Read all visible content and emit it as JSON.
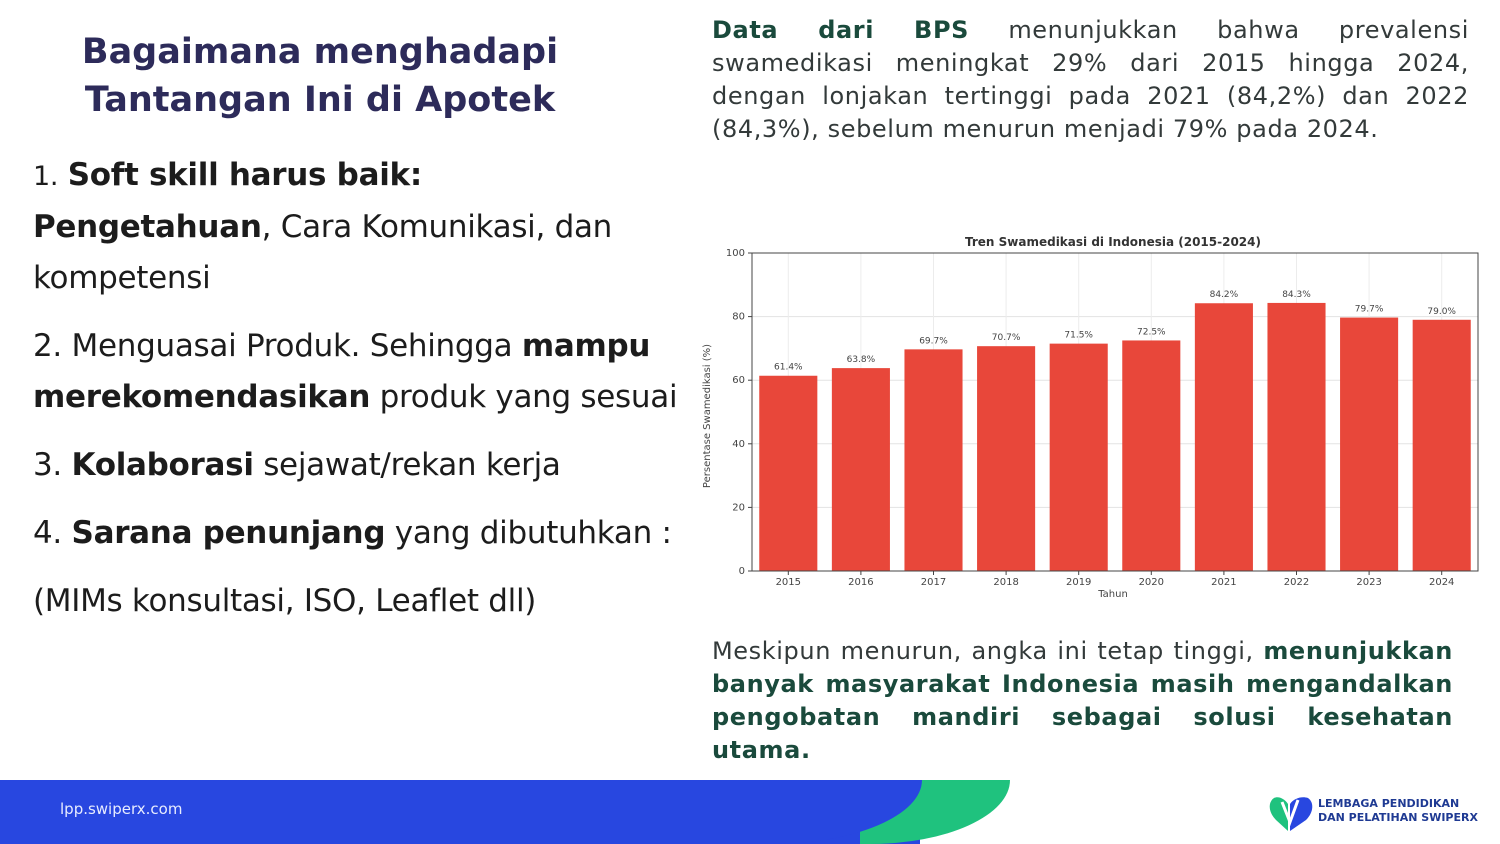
{
  "slide": {
    "title_line1": "Bagaimana menghadapi",
    "title_line2": "Tantangan Ini di Apotek"
  },
  "points": [
    {
      "num": "1.",
      "bold": "Soft skill harus baik:",
      "bold2": "Pengetahuan",
      "rest": ", Cara Komunikasi, dan kompetensi"
    },
    {
      "num": "2.",
      "lead": " Menguasai Produk. Sehingga ",
      "bold": "mampu merekomendasikan",
      "rest": " produk yang sesuai"
    },
    {
      "num": "3.",
      "bold": "Kolaborasi",
      "rest": " sejawat/rekan kerja"
    },
    {
      "num": "4.",
      "bold": "Sarana penunjang",
      "rest": " yang dibutuhkan :"
    },
    {
      "text": "(MIMs konsultasi, ISO, Leaflet dll)"
    }
  ],
  "info_top": {
    "hl": "Data dari BPS",
    "text": " menunjukkan bahwa prevalensi swamedikasi meningkat 29% dari 2015 hingga 2024, dengan lonjakan tertinggi pada 2021 (84,2%) dan 2022 (84,3%), sebelum menurun menjadi 79% pada 2024."
  },
  "info_bottom": {
    "text": "Meskipun menurun, angka ini tetap tinggi, ",
    "hl": "menunjukkan banyak masyarakat Indonesia masih mengandalkan pengobatan mandiri sebagai solusi kesehatan utama."
  },
  "chart_data": {
    "type": "bar",
    "title": "Tren Swamedikasi di Indonesia (2015-2024)",
    "xlabel": "Tahun",
    "ylabel": "Persentase Swamedikasi (%)",
    "ylim": [
      0,
      100
    ],
    "yticks": [
      "0",
      "20",
      "40",
      "60",
      "80",
      "100"
    ],
    "grid": true,
    "categories": [
      "2015",
      "2016",
      "2017",
      "2018",
      "2019",
      "2020",
      "2021",
      "2022",
      "2023",
      "2024"
    ],
    "values": [
      61.4,
      63.8,
      69.7,
      70.7,
      71.5,
      72.5,
      84.2,
      84.3,
      79.7,
      79.0
    ],
    "data_labels": [
      "61.4%",
      "63.8%",
      "69.7%",
      "70.7%",
      "71.5%",
      "72.5%",
      "84.2%",
      "84.3%",
      "79.7%",
      "79.0%"
    ],
    "bar_color": "#e8473a"
  },
  "footer": {
    "url": "lpp.swiperx.com",
    "logo_line1": "LEMBAGA PENDIDIKAN",
    "logo_line2": "DAN PELATIHAN SWIPERX"
  },
  "colors": {
    "title": "#2d2b5a",
    "footer_blue": "#2847e0",
    "footer_green": "#1fc27e",
    "highlight_text": "#1a4a3c"
  }
}
